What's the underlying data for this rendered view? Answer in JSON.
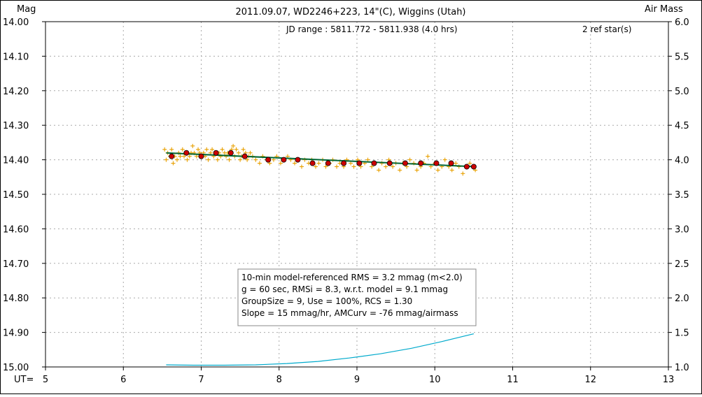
{
  "chart_data": {
    "type": "scatter",
    "title": "2011.09.07, WD2246+223, 14\"(C), Wiggins (Utah)",
    "ylabel_left": "Mag",
    "ylabel_right": "Air Mass",
    "xlabel": "UT=",
    "jd_range": "JD range : 5811.772 - 5811.938 (4.0 hrs)",
    "ref_stars": "2 ref star(s)",
    "xlim": [
      5,
      13
    ],
    "ylim": [
      14.0,
      15.0
    ],
    "y_inverted": true,
    "airmass_lim": [
      1.0,
      6.0
    ],
    "x_ticks": [
      "5",
      "6",
      "7",
      "8",
      "9",
      "10",
      "11",
      "12",
      "13"
    ],
    "y_ticks": [
      "14.00",
      "14.10",
      "14.20",
      "14.30",
      "14.40",
      "14.50",
      "14.60",
      "14.70",
      "14.80",
      "14.90",
      "15.00"
    ],
    "airmass_ticks": [
      "6.0",
      "5.5",
      "5.0",
      "4.5",
      "4.0",
      "3.5",
      "3.0",
      "2.5",
      "2.0",
      "1.5",
      "1.0"
    ],
    "grid": true,
    "colors": {
      "points": "#e8a000",
      "averages": "#cc0000",
      "model": "#006633",
      "airmass": "#00aacc",
      "grid": "#aaaaaa"
    },
    "stats_box": [
      "10-min model-referenced RMS = 3.2 mmag (m<2.0)",
      "g = 60 sec, RMSi = 8.3, w.r.t. model = 9.1 mmag",
      "GroupSize = 9, Use = 100%, RCS = 1.30",
      "Slope = 15 mmag/hr, AMCurv = -76 mmag/airmass"
    ],
    "series": [
      {
        "role": "individual",
        "x": [
          6.53,
          6.55,
          6.57,
          6.6,
          6.62,
          6.64,
          6.66,
          6.69,
          6.71,
          6.73,
          6.76,
          6.78,
          6.8,
          6.82,
          6.85,
          6.87,
          6.89,
          6.91,
          6.94,
          6.96,
          6.98,
          7.0,
          7.03,
          7.05,
          7.07,
          7.09,
          7.12,
          7.14,
          7.16,
          7.18,
          7.21,
          7.23,
          7.25,
          7.27,
          7.3,
          7.32,
          7.34,
          7.36,
          7.39,
          7.41,
          7.43,
          7.45,
          7.48,
          7.5,
          7.52,
          7.54,
          7.57,
          7.59,
          7.61,
          7.63,
          7.66,
          7.7,
          7.75,
          7.79,
          7.84,
          7.88,
          7.93,
          7.97,
          8.02,
          8.06,
          8.11,
          8.15,
          8.2,
          8.24,
          8.29,
          8.33,
          8.38,
          8.42,
          8.47,
          8.51,
          8.56,
          8.6,
          8.65,
          8.69,
          8.74,
          8.78,
          8.83,
          8.87,
          8.92,
          8.96,
          9.01,
          9.05,
          9.1,
          9.14,
          9.19,
          9.23,
          9.28,
          9.32,
          9.37,
          9.41,
          9.46,
          9.5,
          9.55,
          9.59,
          9.64,
          9.68,
          9.73,
          9.77,
          9.82,
          9.86,
          9.91,
          9.95,
          10.0,
          10.04,
          10.09,
          10.13,
          10.18,
          10.22,
          10.27,
          10.31,
          10.36,
          10.4,
          10.45,
          10.49,
          10.52
        ],
        "y": [
          14.37,
          14.4,
          14.38,
          14.39,
          14.37,
          14.41,
          14.39,
          14.4,
          14.38,
          14.39,
          14.37,
          14.39,
          14.38,
          14.4,
          14.39,
          14.38,
          14.36,
          14.38,
          14.39,
          14.37,
          14.38,
          14.39,
          14.38,
          14.39,
          14.37,
          14.4,
          14.38,
          14.37,
          14.39,
          14.38,
          14.4,
          14.38,
          14.39,
          14.37,
          14.38,
          14.39,
          14.38,
          14.4,
          14.37,
          14.36,
          14.39,
          14.37,
          14.38,
          14.4,
          14.39,
          14.37,
          14.38,
          14.4,
          14.39,
          14.38,
          14.39,
          14.4,
          14.41,
          14.39,
          14.4,
          14.41,
          14.4,
          14.39,
          14.41,
          14.4,
          14.39,
          14.4,
          14.41,
          14.4,
          14.42,
          14.4,
          14.41,
          14.4,
          14.42,
          14.41,
          14.4,
          14.42,
          14.41,
          14.4,
          14.42,
          14.41,
          14.42,
          14.4,
          14.41,
          14.42,
          14.4,
          14.42,
          14.41,
          14.4,
          14.42,
          14.41,
          14.43,
          14.41,
          14.42,
          14.4,
          14.42,
          14.41,
          14.43,
          14.41,
          14.42,
          14.4,
          14.41,
          14.43,
          14.42,
          14.41,
          14.39,
          14.42,
          14.41,
          14.43,
          14.42,
          14.4,
          14.42,
          14.43,
          14.41,
          14.42,
          14.44,
          14.42,
          14.41,
          14.42,
          14.43
        ]
      },
      {
        "role": "averages",
        "x": [
          6.62,
          6.81,
          7.0,
          7.19,
          7.38,
          7.56,
          7.86,
          8.06,
          8.24,
          8.43,
          8.63,
          8.83,
          9.03,
          9.22,
          9.42,
          9.62,
          9.82,
          10.02,
          10.21,
          10.41,
          10.5
        ],
        "y": [
          14.39,
          14.38,
          14.39,
          14.38,
          14.38,
          14.39,
          14.4,
          14.4,
          14.4,
          14.41,
          14.41,
          14.41,
          14.41,
          14.41,
          14.41,
          14.41,
          14.41,
          14.41,
          14.41,
          14.42,
          14.42
        ]
      },
      {
        "role": "model",
        "x": [
          6.55,
          10.52
        ],
        "y": [
          14.38,
          14.42
        ]
      },
      {
        "role": "airmass",
        "x": [
          6.55,
          6.9,
          7.3,
          7.7,
          8.1,
          8.5,
          8.9,
          9.3,
          9.7,
          10.1,
          10.5
        ],
        "y": [
          1.03,
          1.025,
          1.025,
          1.03,
          1.05,
          1.08,
          1.13,
          1.19,
          1.27,
          1.37,
          1.48
        ]
      }
    ]
  }
}
